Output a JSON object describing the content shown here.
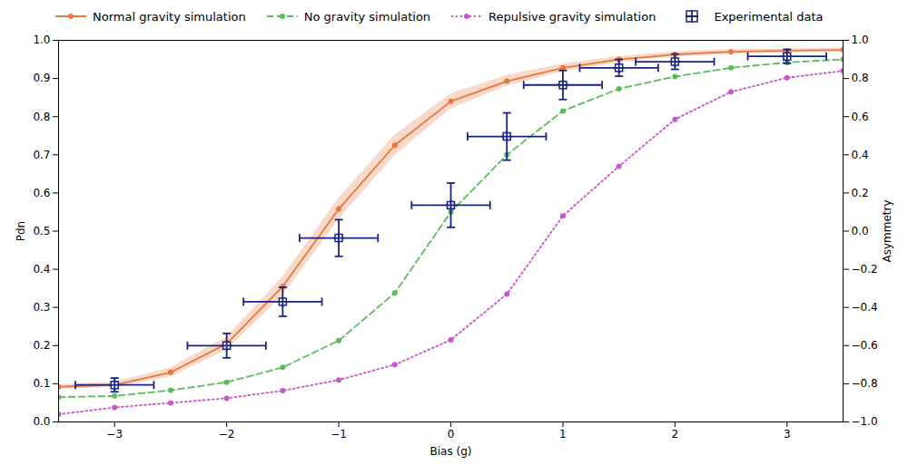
{
  "chart_data": {
    "type": "line",
    "xlabel": "Bias (g)",
    "ylabel": "Pdn",
    "y2label": "Asymmetry",
    "xlim": [
      -3.5,
      3.5
    ],
    "ylim": [
      0,
      1.0
    ],
    "y2lim": [
      -1.0,
      1.0
    ],
    "xticks": [
      -3,
      -2,
      -1,
      0,
      1,
      2,
      3
    ],
    "yticks": [
      {
        "value": 0,
        "label": "0.0"
      },
      0.1,
      0.2,
      0.3,
      0.4,
      0.5,
      0.6,
      0.7,
      0.8,
      0.9,
      {
        "value": 1.0,
        "label": "1.0"
      }
    ],
    "y2ticks": [
      {
        "value": -1.0,
        "label": "−1.0"
      },
      {
        "value": -0.8,
        "label": "−0.8"
      },
      {
        "value": -0.6,
        "label": "−0.6"
      },
      {
        "value": -0.4,
        "label": "−0.4"
      },
      {
        "value": -0.2,
        "label": "−0.2"
      },
      {
        "value": 0.0,
        "label": "0.0"
      },
      0.2,
      0.4,
      0.6,
      0.8,
      {
        "value": 1.0,
        "label": "1.0"
      }
    ],
    "grid": false,
    "legend": "upper left",
    "series": [
      {
        "name": "Normal gravity simulation",
        "color": "#E8783C",
        "line_style": "solid",
        "marker": "circle",
        "x": [
          -3.5,
          -3.0,
          -2.5,
          -2.0,
          -1.5,
          -1.0,
          -0.5,
          0.0,
          0.5,
          1.0,
          1.5,
          2.0,
          2.5,
          3.0,
          3.5
        ],
        "values": [
          0.092,
          0.097,
          0.13,
          0.205,
          0.355,
          0.558,
          0.725,
          0.84,
          0.893,
          0.928,
          0.95,
          0.963,
          0.97,
          0.973,
          0.975
        ],
        "band_lower": [
          0.086,
          0.09,
          0.118,
          0.188,
          0.33,
          0.53,
          0.698,
          0.82,
          0.88,
          0.918,
          0.942,
          0.956,
          0.964,
          0.968,
          0.97
        ],
        "band_upper": [
          0.098,
          0.104,
          0.142,
          0.222,
          0.38,
          0.586,
          0.752,
          0.86,
          0.908,
          0.938,
          0.958,
          0.97,
          0.976,
          0.978,
          0.98
        ]
      },
      {
        "name": "No gravity simulation",
        "color": "#5BBD5A",
        "line_style": "dashed",
        "marker": "circle",
        "x": [
          -3.5,
          -3.0,
          -2.5,
          -2.0,
          -1.5,
          -1.0,
          -0.5,
          0.0,
          0.5,
          1.0,
          1.5,
          2.0,
          2.5,
          3.0,
          3.5
        ],
        "values": [
          0.065,
          0.068,
          0.083,
          0.104,
          0.143,
          0.213,
          0.338,
          0.55,
          0.7,
          0.815,
          0.873,
          0.905,
          0.928,
          0.942,
          0.95
        ]
      },
      {
        "name": "Repulsive gravity simulation",
        "color": "#CC55CC",
        "line_style": "dotted",
        "marker": "circle",
        "x": [
          -3.5,
          -3.0,
          -2.5,
          -2.0,
          -1.5,
          -1.0,
          -0.5,
          0.0,
          0.5,
          1.0,
          1.5,
          2.0,
          2.5,
          3.0,
          3.5
        ],
        "values": [
          0.02,
          0.038,
          0.05,
          0.062,
          0.082,
          0.11,
          0.15,
          0.215,
          0.335,
          0.54,
          0.67,
          0.793,
          0.865,
          0.902,
          0.92
        ]
      },
      {
        "name": "Experimental data",
        "type": "errorbar",
        "color": "#1a237e",
        "marker": "crosshair",
        "x": [
          -3.0,
          -2.0,
          -1.5,
          -1.0,
          0.0,
          0.5,
          1.0,
          1.5,
          2.0,
          3.0
        ],
        "values": [
          0.097,
          0.2,
          0.315,
          0.482,
          0.568,
          0.748,
          0.883,
          0.928,
          0.944,
          0.958
        ],
        "xerr": [
          0.35,
          0.35,
          0.35,
          0.35,
          0.35,
          0.35,
          0.35,
          0.35,
          0.35,
          0.35
        ],
        "yerr": [
          0.018,
          0.032,
          0.038,
          0.048,
          0.058,
          0.062,
          0.038,
          0.022,
          0.02,
          0.018
        ]
      }
    ]
  }
}
